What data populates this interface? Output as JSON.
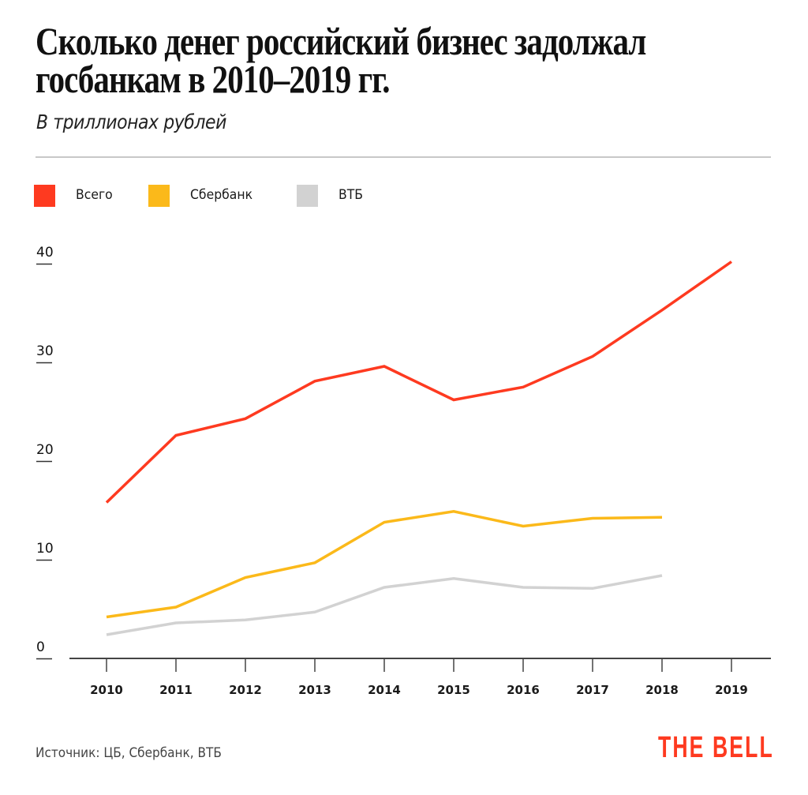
{
  "header": {
    "title_line1": "Сколько денег российский бизнес задолжал",
    "title_line2": "госбанкам в 2010–2019 гг.",
    "subtitle": "В триллионах рублей"
  },
  "legend": [
    {
      "label": "Всего",
      "color": "#fe3a20"
    },
    {
      "label": "Сбербанк",
      "color": "#fbb91a"
    },
    {
      "label": "ВТБ",
      "color": "#d2d2d2"
    }
  ],
  "footer": {
    "source": "Источник:  ЦБ, Сбербанк, ВТБ",
    "logo": "THE BELL"
  },
  "chart_data": {
    "type": "line",
    "title": "Сколько денег российский бизнес задолжал госбанкам в 2010–2019 гг.",
    "subtitle": "В триллионах рублей",
    "xlabel": "",
    "ylabel": "",
    "x": [
      "2010",
      "2011",
      "2012",
      "2013",
      "2014",
      "2015",
      "2016",
      "2017",
      "2018",
      "2019"
    ],
    "ylim": [
      0,
      40
    ],
    "yticks": [
      "0",
      "10",
      "20",
      "30",
      "40"
    ],
    "grid": false,
    "legend_position": "top-left",
    "series": [
      {
        "name": "Всего",
        "color": "#fe3a20",
        "values": [
          15.8,
          22.6,
          24.3,
          28.1,
          29.6,
          26.2,
          27.5,
          30.6,
          35.3,
          40.2
        ]
      },
      {
        "name": "Сбербанк",
        "color": "#fbb91a",
        "values": [
          4.2,
          5.2,
          8.2,
          9.7,
          13.8,
          14.9,
          13.4,
          14.2,
          14.3,
          null
        ]
      },
      {
        "name": "ВТБ",
        "color": "#d2d2d2",
        "values": [
          2.4,
          3.6,
          3.9,
          4.7,
          7.2,
          8.1,
          7.2,
          7.1,
          8.4,
          null
        ]
      }
    ]
  }
}
